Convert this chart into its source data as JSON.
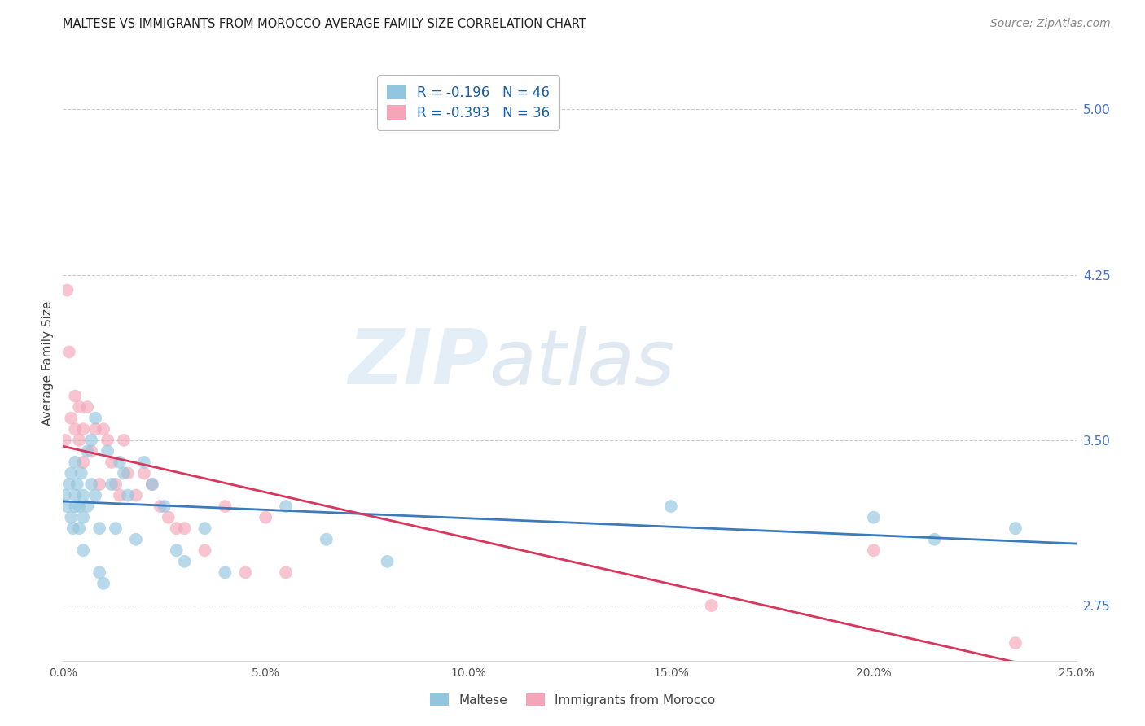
{
  "title": "MALTESE VS IMMIGRANTS FROM MOROCCO AVERAGE FAMILY SIZE CORRELATION CHART",
  "source": "Source: ZipAtlas.com",
  "ylabel": "Average Family Size",
  "right_yticks": [
    2.75,
    3.5,
    4.25,
    5.0
  ],
  "xmin": 0.0,
  "xmax": 0.25,
  "ymin": 2.5,
  "ymax": 5.2,
  "legend1_r": "-0.196",
  "legend1_n": "46",
  "legend2_r": "-0.393",
  "legend2_n": "36",
  "blue_color": "#92c5de",
  "pink_color": "#f4a5b8",
  "blue_line_color": "#3a7abf",
  "pink_line_color": "#d9365e",
  "watermark_zip": "ZIP",
  "watermark_atlas": "atlas",
  "maltese_x": [
    0.0005,
    0.001,
    0.0015,
    0.002,
    0.002,
    0.0025,
    0.003,
    0.003,
    0.003,
    0.0035,
    0.004,
    0.004,
    0.0045,
    0.005,
    0.005,
    0.005,
    0.006,
    0.006,
    0.007,
    0.007,
    0.008,
    0.008,
    0.009,
    0.009,
    0.01,
    0.011,
    0.012,
    0.013,
    0.014,
    0.015,
    0.016,
    0.018,
    0.02,
    0.022,
    0.025,
    0.028,
    0.03,
    0.035,
    0.04,
    0.055,
    0.065,
    0.08,
    0.15,
    0.2,
    0.215,
    0.235
  ],
  "maltese_y": [
    3.25,
    3.2,
    3.3,
    3.15,
    3.35,
    3.1,
    3.25,
    3.4,
    3.2,
    3.3,
    3.2,
    3.1,
    3.35,
    3.25,
    3.15,
    3.0,
    3.45,
    3.2,
    3.5,
    3.3,
    3.6,
    3.25,
    3.1,
    2.9,
    2.85,
    3.45,
    3.3,
    3.1,
    3.4,
    3.35,
    3.25,
    3.05,
    3.4,
    3.3,
    3.2,
    3.0,
    2.95,
    3.1,
    2.9,
    3.2,
    3.05,
    2.95,
    3.2,
    3.15,
    3.05,
    3.1
  ],
  "morocco_x": [
    0.0005,
    0.001,
    0.0015,
    0.002,
    0.003,
    0.003,
    0.004,
    0.004,
    0.005,
    0.005,
    0.006,
    0.007,
    0.008,
    0.009,
    0.01,
    0.011,
    0.012,
    0.013,
    0.014,
    0.015,
    0.016,
    0.018,
    0.02,
    0.022,
    0.024,
    0.026,
    0.028,
    0.03,
    0.035,
    0.04,
    0.045,
    0.05,
    0.055,
    0.16,
    0.2,
    0.235
  ],
  "morocco_y": [
    3.5,
    4.18,
    3.9,
    3.6,
    3.7,
    3.55,
    3.65,
    3.5,
    3.55,
    3.4,
    3.65,
    3.45,
    3.55,
    3.3,
    3.55,
    3.5,
    3.4,
    3.3,
    3.25,
    3.5,
    3.35,
    3.25,
    3.35,
    3.3,
    3.2,
    3.15,
    3.1,
    3.1,
    3.0,
    3.2,
    2.9,
    3.15,
    2.9,
    2.75,
    3.0,
    2.58
  ]
}
